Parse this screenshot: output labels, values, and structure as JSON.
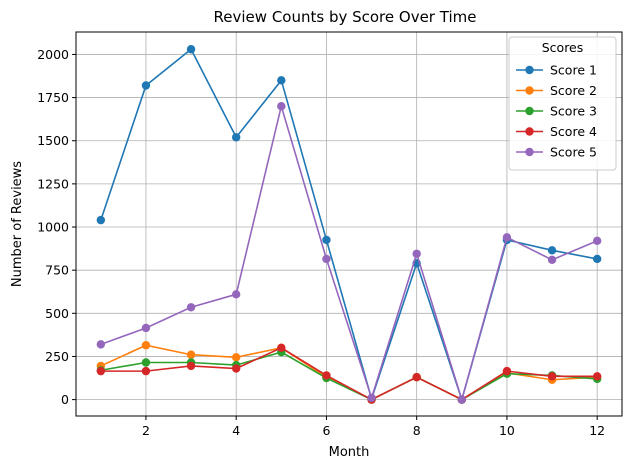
{
  "chart_data": {
    "type": "line",
    "title": "Review Counts by Score Over Time",
    "xlabel": "Month",
    "ylabel": "Number of Reviews",
    "x": [
      1,
      2,
      3,
      4,
      5,
      6,
      7,
      8,
      9,
      10,
      11,
      12
    ],
    "xlim": [
      0.45,
      12.55
    ],
    "ylim": [
      -95,
      2130
    ],
    "xticks": [
      2,
      4,
      6,
      8,
      10,
      12
    ],
    "yticks": [
      0,
      250,
      500,
      750,
      1000,
      1250,
      1500,
      1750,
      2000
    ],
    "grid": true,
    "legend": {
      "title": "Scores",
      "placement": "top-right"
    },
    "series": [
      {
        "name": "Score 1",
        "color": "#1f77b4",
        "values": [
          1040,
          1820,
          2030,
          1520,
          1850,
          925,
          5,
          790,
          0,
          925,
          865,
          815
        ]
      },
      {
        "name": "Score 2",
        "color": "#ff7f0e",
        "values": [
          195,
          315,
          260,
          245,
          300,
          130,
          0,
          130,
          0,
          155,
          115,
          130
        ]
      },
      {
        "name": "Score 3",
        "color": "#2ca02c",
        "values": [
          170,
          215,
          215,
          200,
          275,
          125,
          0,
          130,
          0,
          150,
          140,
          120
        ]
      },
      {
        "name": "Score 4",
        "color": "#d62728",
        "values": [
          165,
          165,
          195,
          180,
          300,
          140,
          0,
          130,
          0,
          165,
          135,
          135
        ]
      },
      {
        "name": "Score 5",
        "color": "#9467bd",
        "values": [
          320,
          415,
          535,
          610,
          1700,
          815,
          10,
          845,
          0,
          940,
          810,
          920
        ]
      }
    ]
  }
}
